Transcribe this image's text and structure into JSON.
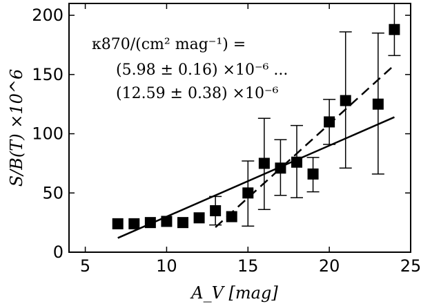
{
  "chart_data": {
    "type": "scatter",
    "xlabel": "A_V [mag]",
    "ylabel": "S/B(T) ×10^6",
    "xlim": [
      4,
      25
    ],
    "ylim": [
      0,
      210
    ],
    "xticks": [
      5,
      10,
      15,
      20,
      25
    ],
    "yticks": [
      0,
      50,
      100,
      150,
      200
    ],
    "grid": false,
    "annotation": [
      "κ870/(cm² mag⁻¹) =",
      "(5.98 ± 0.16) ×10⁻⁶ ...",
      "(12.59 ± 0.38) ×10⁻⁶"
    ],
    "series": [
      {
        "marker": "square",
        "points": [
          {
            "x": 7,
            "y": 24,
            "err_lo": null,
            "err_hi": null
          },
          {
            "x": 8,
            "y": 24,
            "err_lo": null,
            "err_hi": null
          },
          {
            "x": 9,
            "y": 25,
            "err_lo": null,
            "err_hi": null
          },
          {
            "x": 10,
            "y": 26,
            "err_lo": null,
            "err_hi": null
          },
          {
            "x": 11,
            "y": 25,
            "err_lo": null,
            "err_hi": null
          },
          {
            "x": 12,
            "y": 29,
            "err_lo": null,
            "err_hi": null
          },
          {
            "x": 13,
            "y": 35,
            "err_lo": 23,
            "err_hi": 47
          },
          {
            "x": 14,
            "y": 30,
            "err_lo": null,
            "err_hi": null
          },
          {
            "x": 15,
            "y": 50,
            "err_lo": 22,
            "err_hi": 77
          },
          {
            "x": 16,
            "y": 75,
            "err_lo": 36,
            "err_hi": 113
          },
          {
            "x": 17,
            "y": 71,
            "err_lo": 48,
            "err_hi": 95
          },
          {
            "x": 18,
            "y": 76,
            "err_lo": 46,
            "err_hi": 107
          },
          {
            "x": 19,
            "y": 66,
            "err_lo": 51,
            "err_hi": 80
          },
          {
            "x": 20,
            "y": 110,
            "err_lo": 91,
            "err_hi": 129
          },
          {
            "x": 21,
            "y": 128,
            "err_lo": 71,
            "err_hi": 186
          },
          {
            "x": 23,
            "y": 125,
            "err_lo": 66,
            "err_hi": 185
          },
          {
            "x": 24,
            "y": 188,
            "err_lo": 166,
            "err_hi": 210
          }
        ]
      }
    ],
    "lines": [
      {
        "style": "solid",
        "x": [
          7,
          24
        ],
        "y": [
          12,
          114
        ]
      },
      {
        "style": "dashed",
        "x": [
          13,
          24
        ],
        "y": [
          21,
          158
        ]
      }
    ]
  }
}
